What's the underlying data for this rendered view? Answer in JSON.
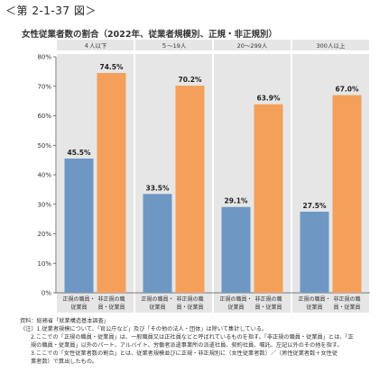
{
  "figure_label": "＜第 2-1-37 図＞",
  "chart_data": {
    "type": "bar",
    "title": "女性従業者数の割合（2022年、従業者規模別、正規・非正規別）",
    "groups": [
      "４人以下",
      "５〜19人",
      "20〜299人",
      "300人以上"
    ],
    "series": [
      {
        "name": "正規の職員・従業員",
        "label_lines": [
          "正規の職員・",
          "従業員"
        ],
        "color": "#6f97c4",
        "values": [
          45.5,
          33.5,
          29.1,
          27.5
        ],
        "value_labels": [
          "45.5%",
          "33.5%",
          "29.1%",
          "27.5%"
        ]
      },
      {
        "name": "非正規の職員・従業員",
        "label_lines": [
          "非正規の職",
          "員・従業員"
        ],
        "color": "#f4a05a",
        "values": [
          74.5,
          70.2,
          63.9,
          67.0
        ],
        "value_labels": [
          "74.5%",
          "70.2%",
          "63.9%",
          "67.0%"
        ]
      }
    ],
    "yticks": [
      "0%",
      "10%",
      "20%",
      "30%",
      "40%",
      "50%",
      "60%",
      "70%",
      "80%"
    ],
    "ylim": [
      0,
      80
    ],
    "grid": false,
    "panel_bg": "#e6e6e6"
  },
  "notes": {
    "source": "資料：総務省「就業構造基本調査」",
    "lines": [
      {
        "text": "（注）1.従業者規模について、「官公庁など」及び「その他の法人・団体」は除いて集計している。",
        "indent": false
      },
      {
        "text": "2.ここでの「正規の職員・従業員」は、一般職員又は正社員などと呼ばれているものを指す。「非正規の職員・従業員」とは、「正",
        "indent": true
      },
      {
        "text": "規の職員・従業員」以外のパート、アルバイト、労働者派遣事業所の派遣社員、契約社員、嘱託、左記以外のその他を指す。",
        "indent": true
      },
      {
        "text": "3.ここでの「女性従業者数の割合」とは、従業者規模並びに正規・非正規別に（女性従業者数）／（男性従業者数＋女性従",
        "indent": true
      },
      {
        "text": "業者数）で算出したもの。",
        "indent": true
      }
    ]
  }
}
